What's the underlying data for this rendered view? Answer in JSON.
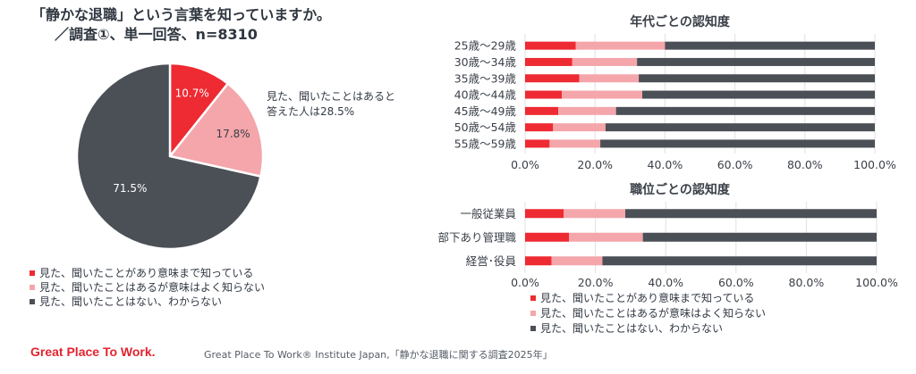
{
  "header": {
    "title_line1": "「静かな退職」という言葉を知っていますか。",
    "title_line2": "／調査①、単一回答、n=8310"
  },
  "pie_annotation": {
    "line1": "見た、聞いたことはあると",
    "line2": "答えた人は28.5%"
  },
  "legend": {
    "item1": "見た、聞いたことがあり意味まで知っている",
    "item2": "見た、聞いたことはあるが意味はよく知らない",
    "item3": "見た、聞いたことはない、わからない"
  },
  "colors": {
    "red": "#ee2a32",
    "pink": "#f4a6ab",
    "dark": "#4b4f56"
  },
  "footer": {
    "logo": "Great Place To Work.",
    "source": "Great Place To Work® Institute Japan,「静かな退職に関する調査2025年」"
  },
  "chart_data": [
    {
      "type": "pie",
      "title": "「静かな退職」という言葉を知っていますか。",
      "labels": [
        "見た、聞いたことがあり意味まで知っている",
        "見た、聞いたことはあるが意味はよく知らない",
        "見た、聞いたことはない、わからない"
      ],
      "values": [
        10.7,
        17.8,
        71.5
      ],
      "value_labels": [
        "10.7%",
        "17.8%",
        "71.5%"
      ]
    },
    {
      "type": "bar",
      "orientation": "horizontal",
      "stacked": true,
      "title": "年代ごとの認知度",
      "categories": [
        "25歳～29歳",
        "30歳～34歳",
        "35歳～39歳",
        "40歳～44歳",
        "45歳～49歳",
        "50歳～54歳",
        "55歳～59歳"
      ],
      "series": [
        {
          "name": "見た、聞いたことがあり意味まで知っている",
          "values": [
            14.5,
            13.5,
            15.5,
            10.5,
            9.5,
            8.0,
            7.0
          ]
        },
        {
          "name": "見た、聞いたことはあるが意味はよく知らない",
          "values": [
            25.5,
            18.5,
            17.0,
            23.0,
            16.5,
            15.0,
            14.5
          ]
        },
        {
          "name": "見た、聞いたことはない、わからない",
          "values": [
            60.0,
            68.0,
            67.5,
            66.5,
            74.0,
            77.0,
            78.5
          ]
        }
      ],
      "xlim": [
        0,
        100
      ],
      "ticks": [
        "0.0%",
        "20.0%",
        "40.0%",
        "60.0%",
        "80.0%",
        "100.0%"
      ]
    },
    {
      "type": "bar",
      "orientation": "horizontal",
      "stacked": true,
      "title": "職位ごとの認知度",
      "categories": [
        "一般従業員",
        "部下あり管理職",
        "経営･役員"
      ],
      "series": [
        {
          "name": "見た、聞いたことがあり意味まで知っている",
          "values": [
            11.0,
            12.5,
            7.5
          ]
        },
        {
          "name": "見た、聞いたことはあるが意味はよく知らない",
          "values": [
            17.5,
            21.0,
            14.5
          ]
        },
        {
          "name": "見た、聞いたことはない、わからない",
          "values": [
            71.5,
            66.5,
            78.0
          ]
        }
      ],
      "xlim": [
        0,
        100
      ],
      "ticks": [
        "0.0%",
        "20.0%",
        "40.0%",
        "60.0%",
        "80.0%",
        "100.0%"
      ]
    }
  ]
}
